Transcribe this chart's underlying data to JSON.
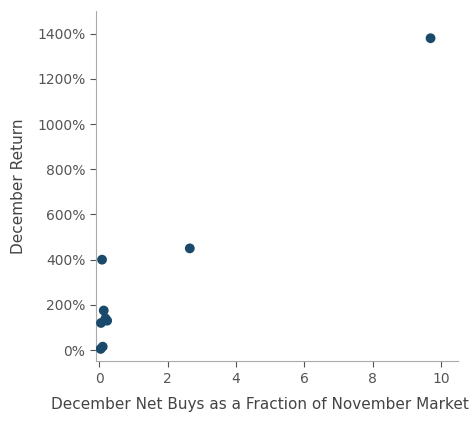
{
  "x": [
    9.7,
    2.65,
    0.08,
    0.13,
    0.18,
    0.23,
    0.05,
    0.1,
    0.04
  ],
  "y": [
    1380,
    450,
    400,
    175,
    140,
    130,
    120,
    15,
    5
  ],
  "dot_color": "#1a4a6b",
  "dot_size": 50,
  "xlabel": "December Net Buys as a Fraction of November Market Cap",
  "ylabel": "December Return",
  "xlim": [
    -0.1,
    10.5
  ],
  "ylim": [
    -50,
    1500
  ],
  "xticks": [
    0,
    2,
    4,
    6,
    8,
    10
  ],
  "yticks": [
    0,
    200,
    400,
    600,
    800,
    1000,
    1200,
    1400
  ],
  "background_color": "#ffffff",
  "axes_background": "#ffffff",
  "spine_color": "#aaaaaa",
  "tick_label_fontsize": 10,
  "axis_label_fontsize": 11
}
